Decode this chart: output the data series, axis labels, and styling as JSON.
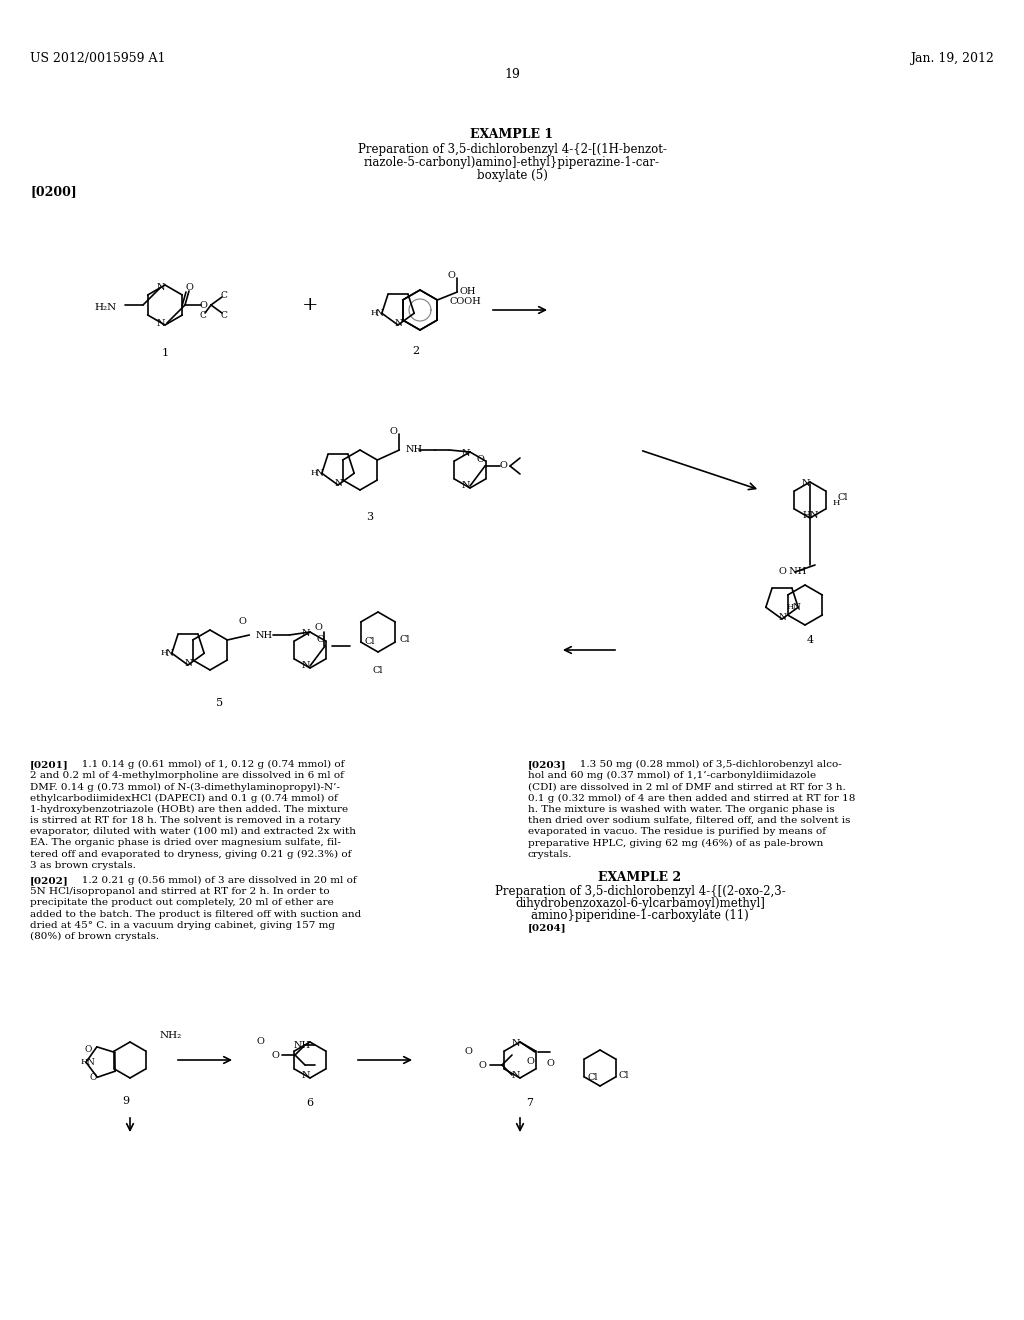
{
  "page_bg": "#ffffff",
  "header_left": "US 2012/0015959 A1",
  "header_right": "Jan. 19, 2012",
  "page_number": "19",
  "example1_title": "EXAMPLE 1",
  "example1_subtitle_line1": "Preparation of 3,5-dichlorobenzyl 4-{2-[(1H-benzot-",
  "example1_subtitle_line2": "riazole-5-carbonyl)amino]-ethyl}piperazine-1-car-",
  "example1_subtitle_line3": "boxylate (5)",
  "ref0200": "[0200]",
  "para0201_bold": "[0201]",
  "para0201_text": "  1.1 0.14 g (0.61 mmol) of 1, 0.12 g (0.74 mmol) of 2 and 0.2 ml of 4-methylmorpholine are dissolved in 6 ml of DMF. 0.14 g (0.73 mmol) of N-(3-dimethylaminopropyl)-N’-ethylcarbodiimidexHCl (DAPECI) and 0.1 g (0.74 mmol) of 1-hydroxybenzotriazole (HOBt) are then added. The mixture is stirred at RT for 18 h. The solvent is removed in a rotary evaporator, diluted with water (100 ml) and extracted 2x with EA. The organic phase is dried over magnesium sulfate, filtered off and evaporated to dryness, giving 0.21 g (92.3%) of 3 as brown crystals.",
  "para0202_bold": "[0202]",
  "para0202_text": "  1.2 0.21 g (0.56 mmol) of 3 are dissolved in 20 ml of 5N HCl/isopropanol and stirred at RT for 2 h. In order to precipitate the product out completely, 20 ml of ether are added to the batch. The product is filtered off with suction and dried at 45° C. in a vacuum drying cabinet, giving 157 mg (80%) of brown crystals.",
  "para0203_bold": "[0203]",
  "para0203_text": "  1.3 50 mg (0.28 mmol) of 3,5-dichlorobenzyl alcohol and 60 mg (0.37 mmol) of 1,1’-carbonyldiimidazole (CDI) are dissolved in 2 ml of DMF and stirred at RT for 3 h. 0.1 g (0.32 mmol) of 4 are then added and stirred at RT for 18 h. The mixture is washed with water. The organic phase is then dried over sodium sulfate, filtered off, and the solvent is evaporated in vacuo. The residue is purified by means of preparative HPLC, giving 62 mg (46%) of as pale-brown crystals.",
  "example2_title": "EXAMPLE 2",
  "example2_subtitle_line1": "Preparation of 3,5-dichlorobenzyl 4-{[(2-oxo-2,3-",
  "example2_subtitle_line2": "dihydrobenzoxazol-6-ylcarbamoyl)methyl]",
  "example2_subtitle_line3": "amino}piperidine-1-carboxylate (11)",
  "ref0204": "[0204]",
  "figsize": [
    10.24,
    13.2
  ],
  "dpi": 100
}
